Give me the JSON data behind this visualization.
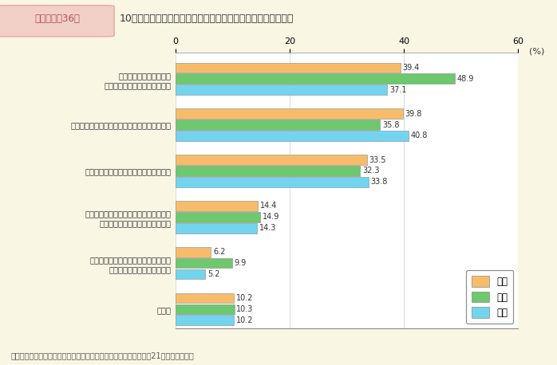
{
  "title_box": "第１－特－36図",
  "title_main": "10年後のキャリアアップが見通せる理由（性別）（複数回答）",
  "categories": [
    "今後，自分の能力開発を\n行っていこうと考えているから",
    "職場においてキャリアパスが示されているから",
    "明確なキャリアプランを持っているから",
    "身近にロールモデルやキャリアプランに\nついて相談できる上司がいるから",
    "職場の同僚等の間でキャリアについて\n相談しやすい環境にあるから",
    "その他"
  ],
  "series": {
    "総数": [
      39.4,
      39.8,
      33.5,
      14.4,
      6.2,
      10.2
    ],
    "女性": [
      48.9,
      35.8,
      32.3,
      14.9,
      9.9,
      10.3
    ],
    "男性": [
      37.1,
      40.8,
      33.8,
      14.3,
      5.2,
      10.2
    ]
  },
  "colors": {
    "総数": "#F7BC6A",
    "女性": "#6DC86E",
    "男性": "#72D4EE"
  },
  "xlim": [
    0,
    60
  ],
  "xticks": [
    0,
    20,
    40,
    60
  ],
  "xlabel": "(%)",
  "background_color": "#FAF6E4",
  "plot_bg_color": "#FFFFFF",
  "title_box_bg": "#F2D0C8",
  "title_box_text_color": "#B05050",
  "title_box_border": "#E8B0A0",
  "footer": "（備考）内閣府「男女のライフスタイルに関する意識調査」（平成21年）より作成。"
}
